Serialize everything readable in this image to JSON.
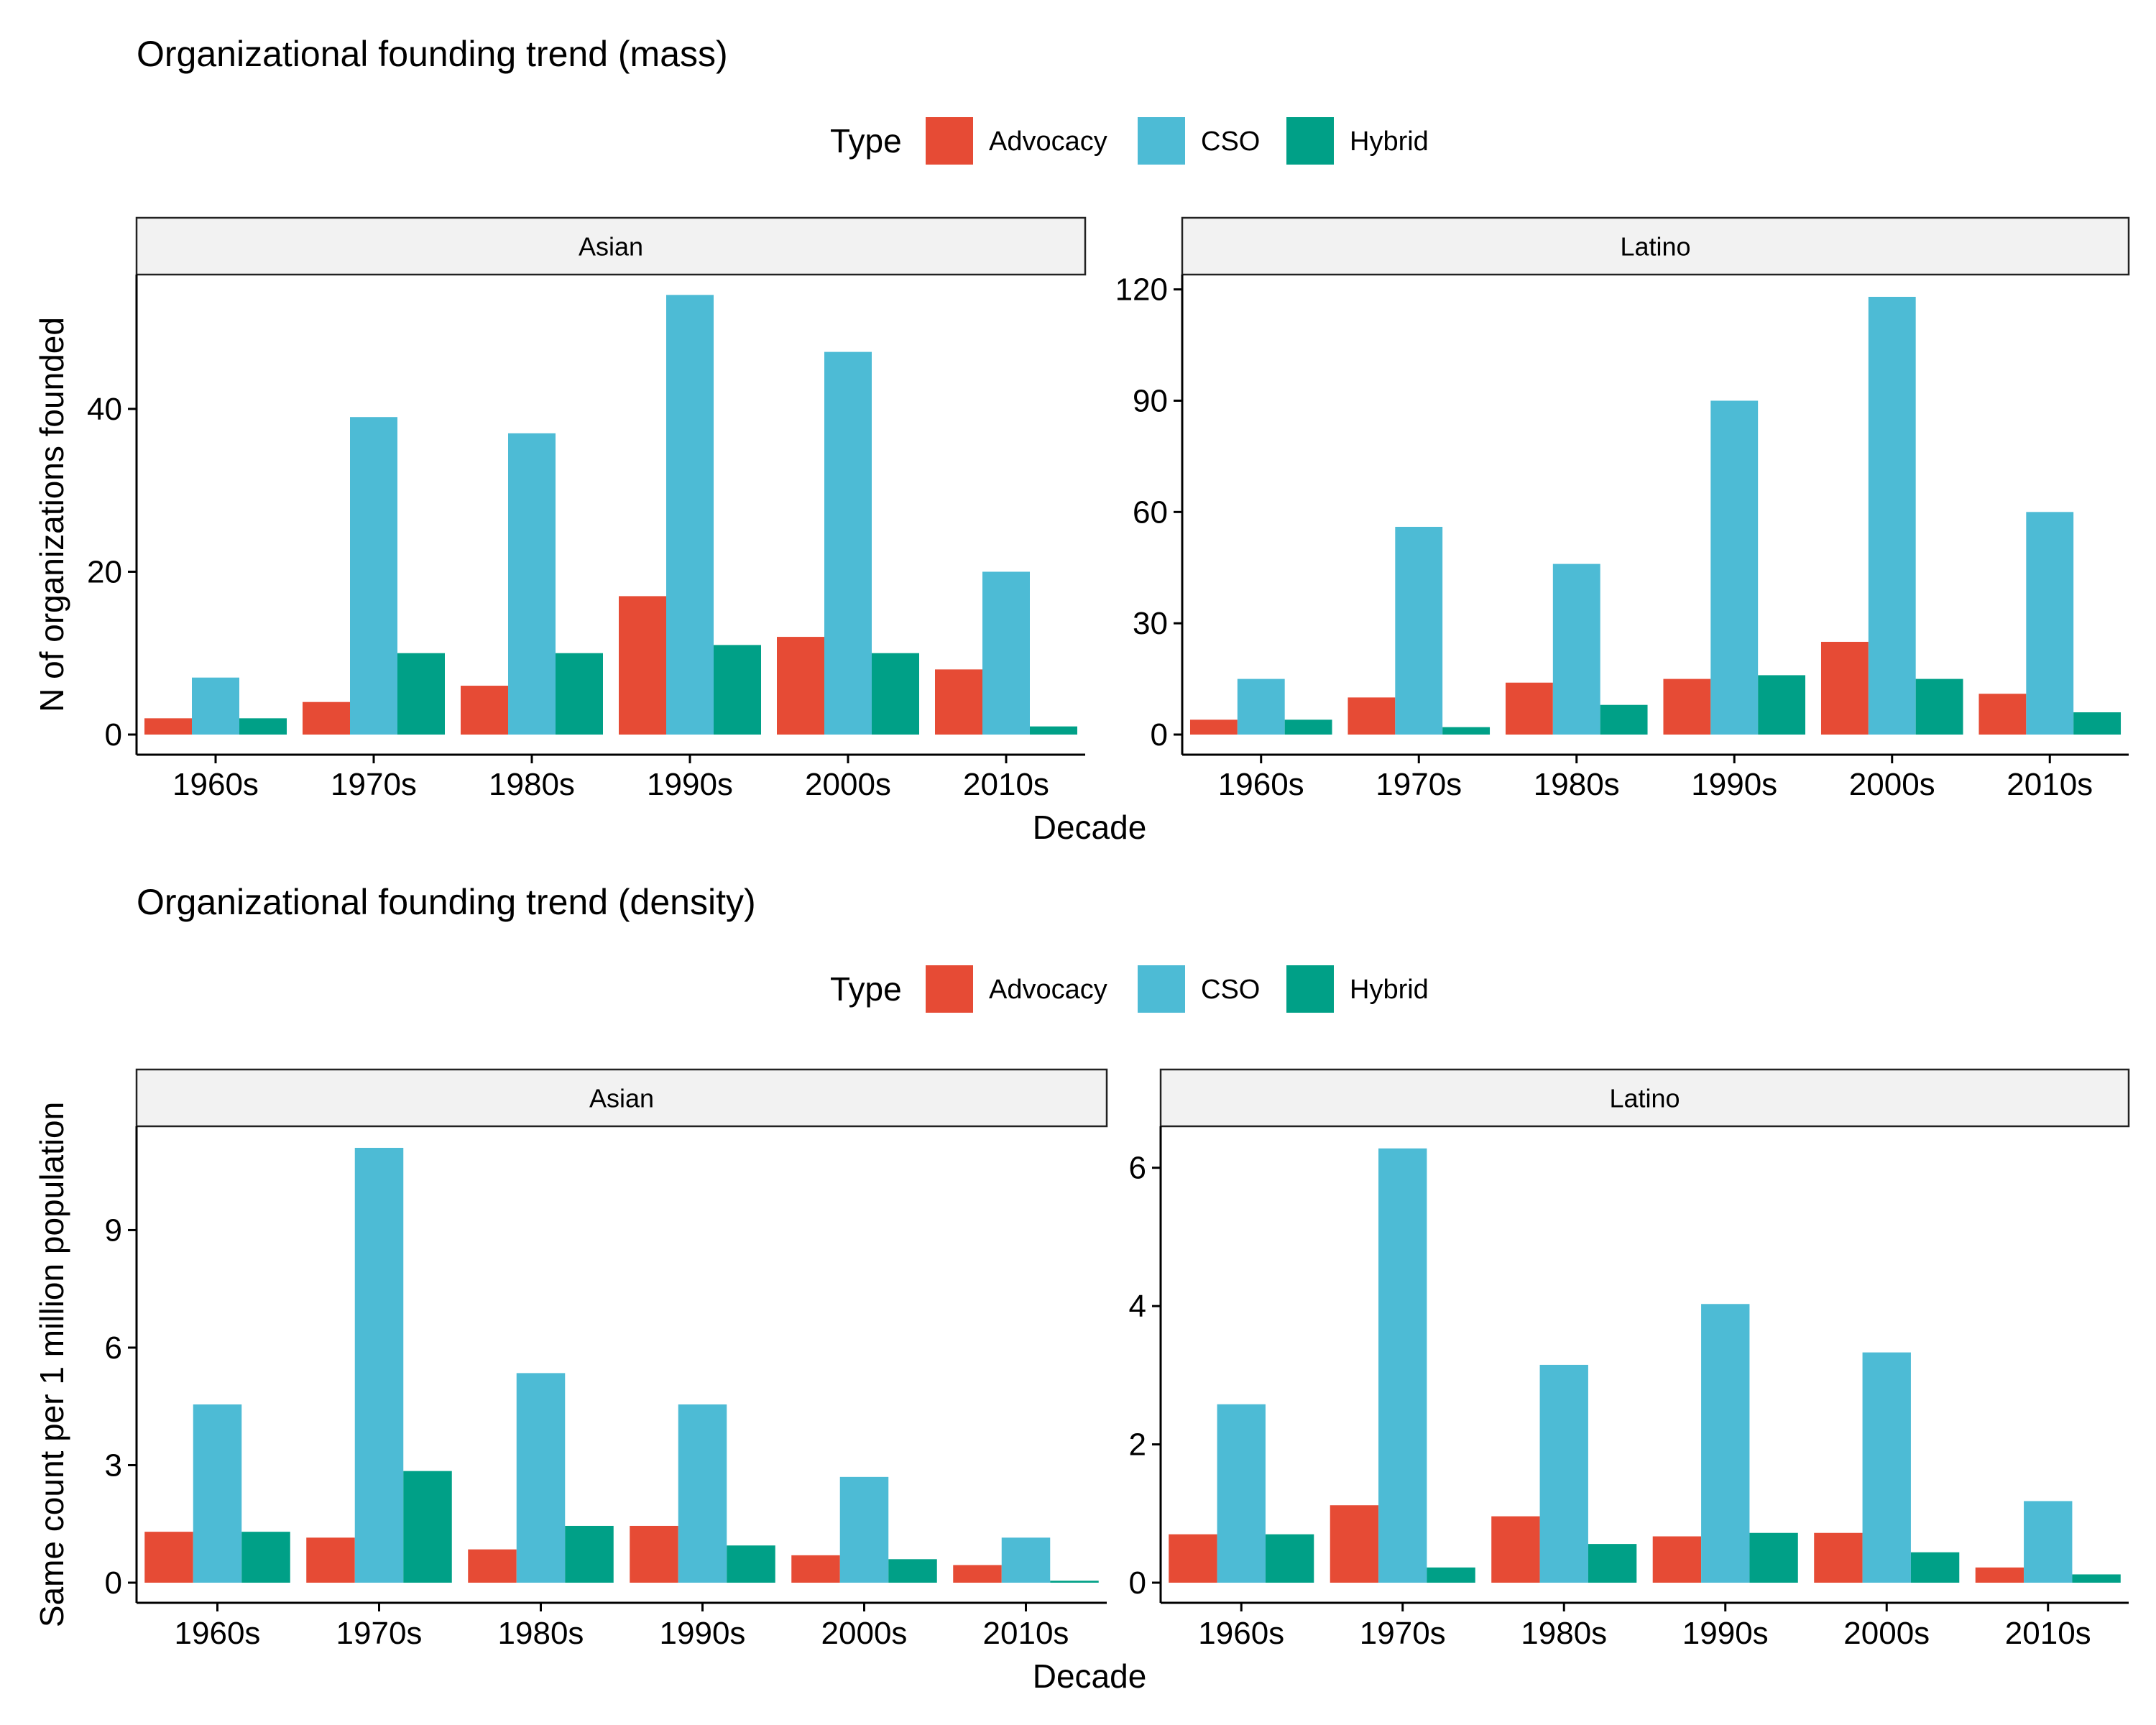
{
  "chart_data": [
    {
      "type": "bar",
      "title": "Organizational founding trend (mass)",
      "legend": {
        "title": "Type",
        "position": "top",
        "entries": [
          "Advocacy",
          "CSO",
          "Hybrid"
        ]
      },
      "colors": {
        "Advocacy": "#e64b35",
        "CSO": "#4dbbd5",
        "Hybrid": "#00a087"
      },
      "xlabel": "Decade",
      "ylabel": "N of organizations founded",
      "grid": false,
      "categories": [
        "1960s",
        "1970s",
        "1980s",
        "1990s",
        "2000s",
        "2010s"
      ],
      "facets": [
        {
          "label": "Asian",
          "ylim": [
            0,
            56.5
          ],
          "yticks": [
            0,
            20,
            40
          ],
          "series": [
            {
              "name": "Advocacy",
              "values": [
                2,
                4,
                6,
                17,
                12,
                8
              ]
            },
            {
              "name": "CSO",
              "values": [
                7,
                39,
                37,
                54,
                47,
                20
              ]
            },
            {
              "name": "Hybrid",
              "values": [
                2,
                10,
                10,
                11,
                10,
                1
              ]
            }
          ]
        },
        {
          "label": "Latino",
          "ylim": [
            0,
            124
          ],
          "yticks": [
            0,
            30,
            60,
            90,
            120
          ],
          "series": [
            {
              "name": "Advocacy",
              "values": [
                4,
                10,
                14,
                15,
                25,
                11
              ]
            },
            {
              "name": "CSO",
              "values": [
                15,
                56,
                46,
                90,
                118,
                60
              ]
            },
            {
              "name": "Hybrid",
              "values": [
                4,
                2,
                8,
                16,
                15,
                6
              ]
            }
          ]
        }
      ]
    },
    {
      "type": "bar",
      "title": "Organizational founding trend (density)",
      "legend": {
        "title": "Type",
        "position": "top",
        "entries": [
          "Advocacy",
          "CSO",
          "Hybrid"
        ]
      },
      "colors": {
        "Advocacy": "#e64b35",
        "CSO": "#4dbbd5",
        "Hybrid": "#00a087"
      },
      "xlabel": "Decade",
      "ylabel": "Same count per 1 million population",
      "grid": false,
      "categories": [
        "1960s",
        "1970s",
        "1980s",
        "1990s",
        "2000s",
        "2010s"
      ],
      "facets": [
        {
          "label": "Asian",
          "ylim": [
            0,
            11.65
          ],
          "yticks": [
            0,
            3,
            6,
            9
          ],
          "series": [
            {
              "name": "Advocacy",
              "values": [
                1.3,
                1.15,
                0.85,
                1.45,
                0.7,
                0.45
              ]
            },
            {
              "name": "CSO",
              "values": [
                4.55,
                11.1,
                5.35,
                4.55,
                2.7,
                1.15
              ]
            },
            {
              "name": "Hybrid",
              "values": [
                1.3,
                2.85,
                1.45,
                0.95,
                0.6,
                0.05
              ]
            }
          ]
        },
        {
          "label": "Latino",
          "ylim": [
            0,
            6.6
          ],
          "yticks": [
            0,
            2,
            4,
            6
          ],
          "series": [
            {
              "name": "Advocacy",
              "values": [
                0.7,
                1.12,
                0.96,
                0.67,
                0.72,
                0.22
              ]
            },
            {
              "name": "CSO",
              "values": [
                2.58,
                6.28,
                3.15,
                4.03,
                3.33,
                1.18
              ]
            },
            {
              "name": "Hybrid",
              "values": [
                0.7,
                0.22,
                0.56,
                0.72,
                0.44,
                0.12
              ]
            }
          ]
        }
      ]
    }
  ]
}
